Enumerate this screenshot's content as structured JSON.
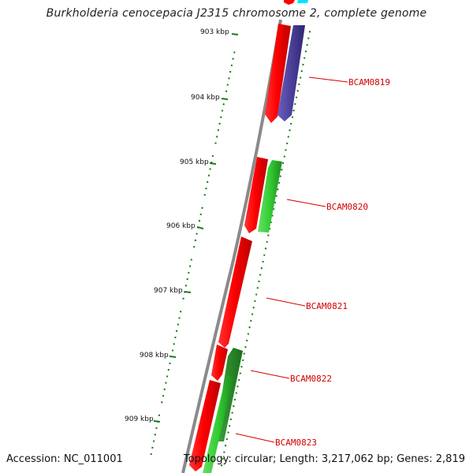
{
  "title": "Burkholderia cenocepacia J2315 chromosome 2, complete genome",
  "accession": "Accession: NC_011001",
  "summary": "Topology: circular; Length: 3,217,062 bp; Genes: 2,819",
  "colors": {
    "backbone": "#888888",
    "tick": "#1a7a1a",
    "forward_cds": "#ff0000",
    "reverse_cds_green": "#33cc33",
    "reverse_cds_purple": "#4b3f9a",
    "reverse_cds_cyan": "#00e5ff",
    "label": "#d40000"
  },
  "ticks": [
    {
      "label": "903 kbp"
    },
    {
      "label": "904 kbp"
    },
    {
      "label": "905 kbp"
    },
    {
      "label": "906 kbp"
    },
    {
      "label": "907 kbp"
    },
    {
      "label": "908 kbp"
    },
    {
      "label": "909 kbp"
    }
  ],
  "genes": [
    {
      "label": "BCAM0819"
    },
    {
      "label": "BCAM0820"
    },
    {
      "label": "BCAM0821"
    },
    {
      "label": "BCAM0822"
    },
    {
      "label": "BCAM0823"
    }
  ]
}
